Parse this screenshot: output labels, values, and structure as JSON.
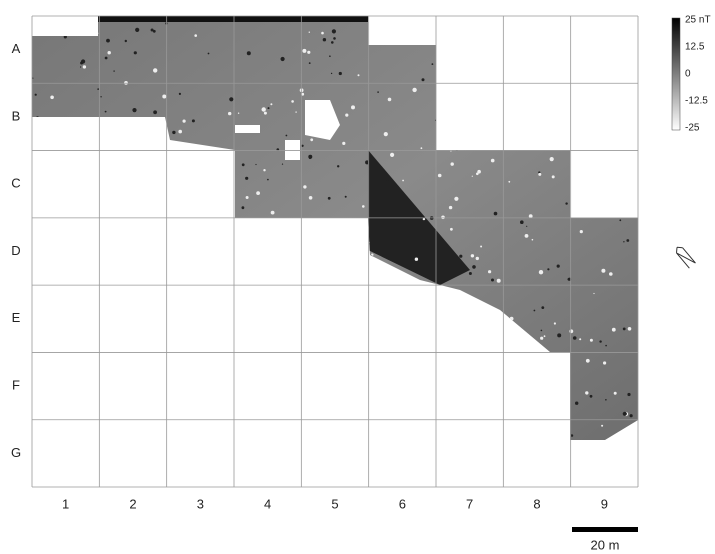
{
  "rows": [
    "A",
    "B",
    "C",
    "D",
    "E",
    "F",
    "G"
  ],
  "columns": [
    "1",
    "2",
    "3",
    "4",
    "5",
    "6",
    "7",
    "8",
    "9"
  ],
  "legend": {
    "labels": [
      "25 nT",
      "12.5",
      "0",
      "-12.5",
      "-25"
    ]
  },
  "scale_bar": {
    "label": "20 m"
  }
}
